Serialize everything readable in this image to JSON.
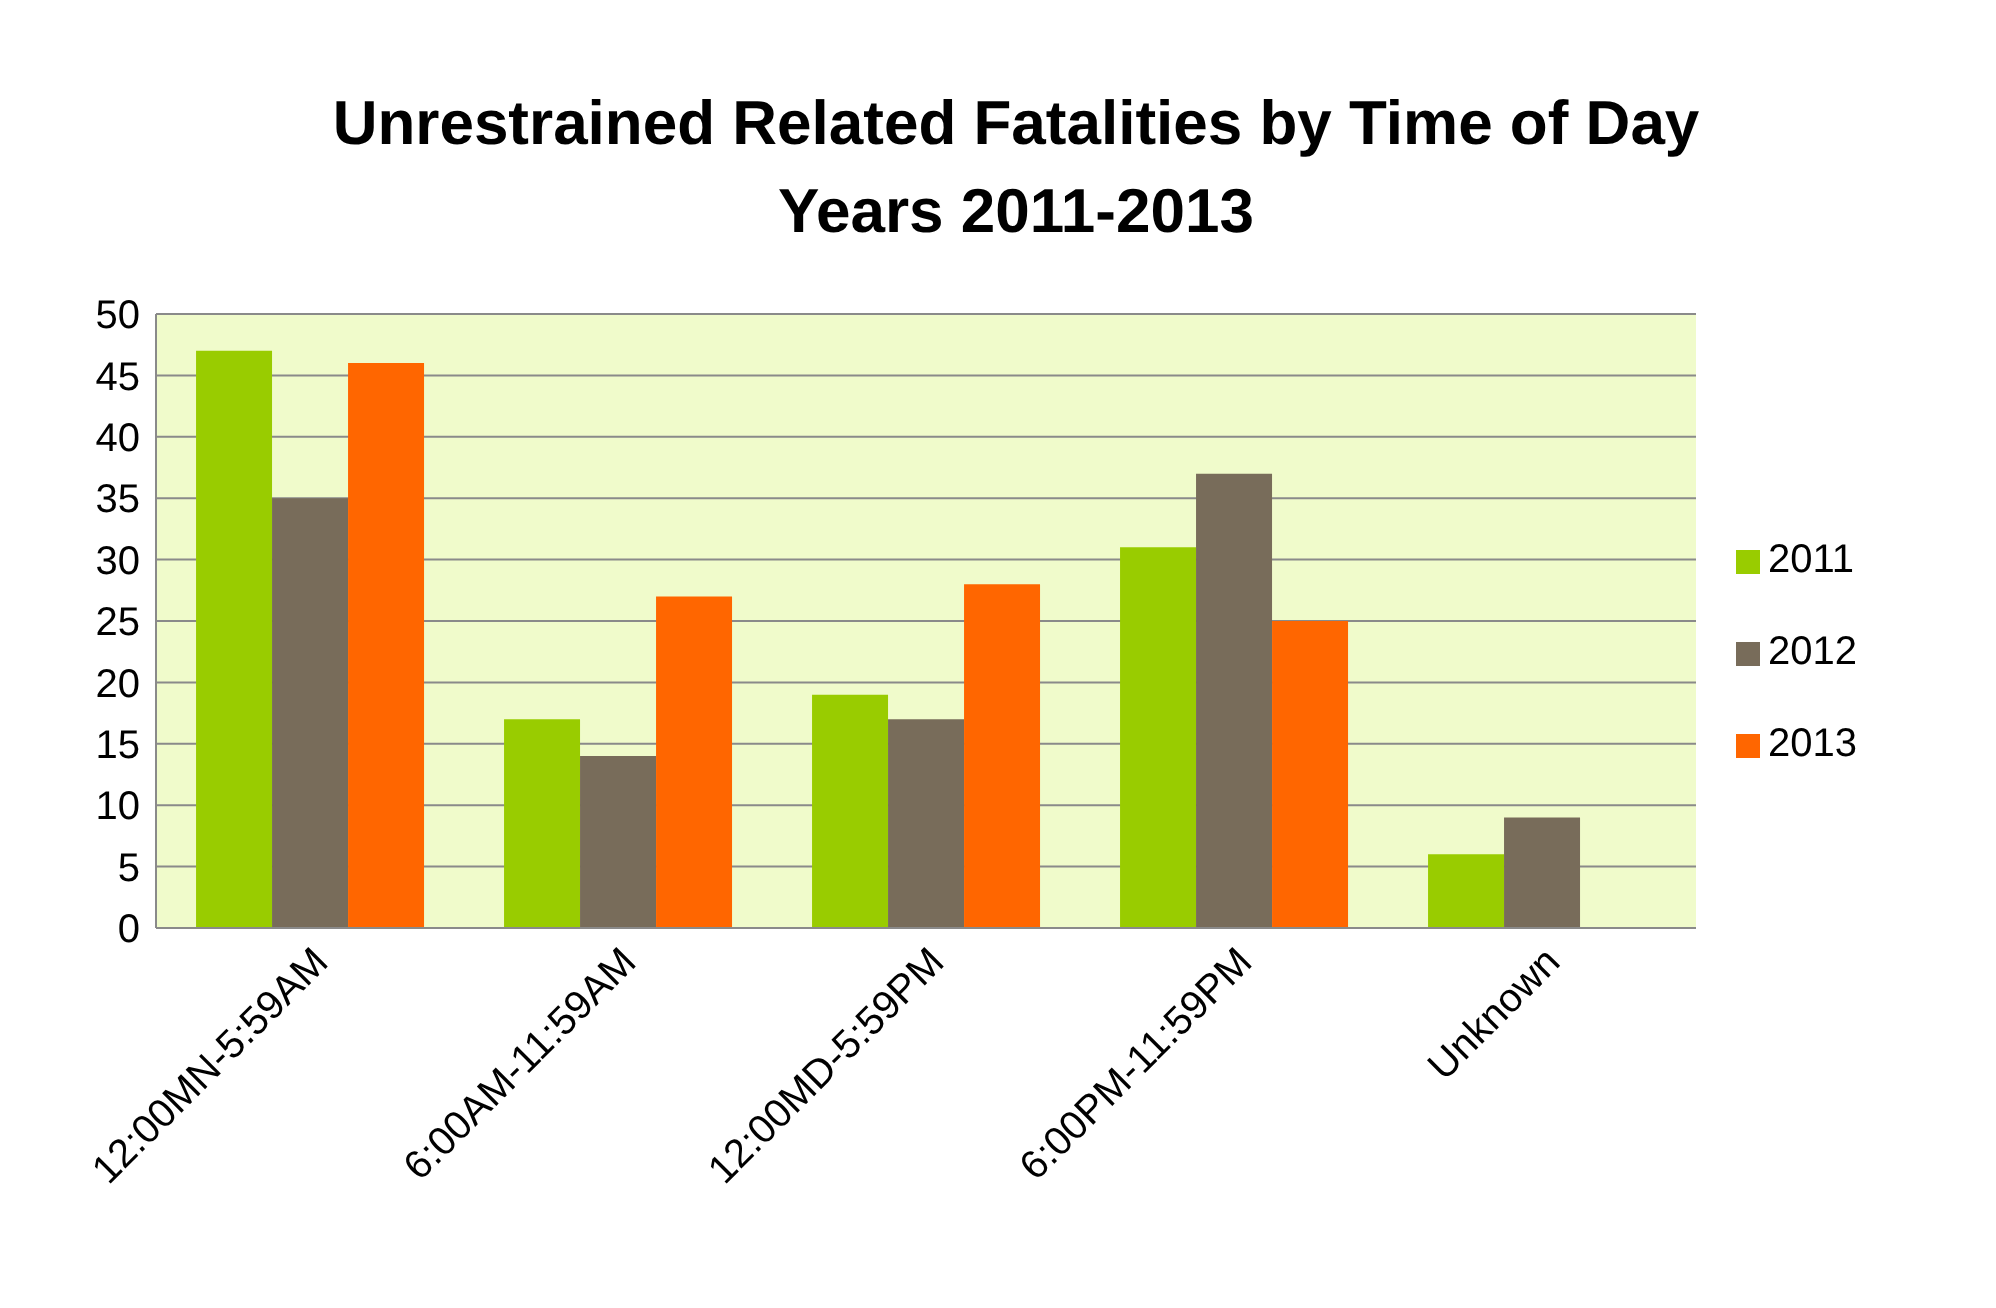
{
  "chart_data": {
    "type": "bar",
    "title": "Unrestrained Related Fatalities by Time of Day\nYears 2011-2013",
    "categories": [
      "12:00MN-5:59AM",
      "6:00AM-11:59AM",
      "12:00MD-5:59PM",
      "6:00PM-11:59PM",
      "Unknown"
    ],
    "series": [
      {
        "name": "2011",
        "color": "#99cc00",
        "values": [
          47,
          17,
          19,
          31,
          6
        ]
      },
      {
        "name": "2012",
        "color": "#786c5a",
        "values": [
          35,
          14,
          17,
          37,
          9
        ]
      },
      {
        "name": "2013",
        "color": "#ff6600",
        "values": [
          46,
          27,
          28,
          25,
          null
        ]
      }
    ],
    "ylim": [
      0,
      50
    ],
    "yticks": [
      0,
      5,
      10,
      15,
      20,
      25,
      30,
      35,
      40,
      45,
      50
    ],
    "grid": "y",
    "legend": "right"
  }
}
